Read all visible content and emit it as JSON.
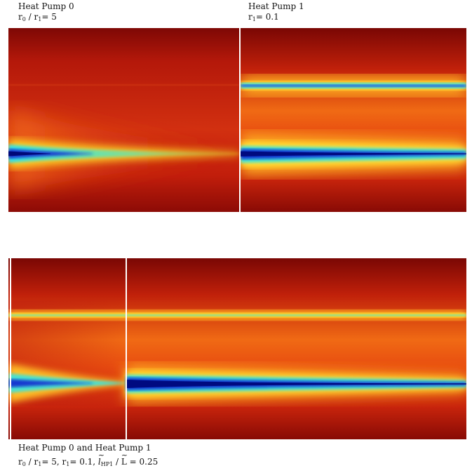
{
  "panels": [
    {
      "id": "hp0",
      "title": "Heat Pump 0",
      "param": {
        "r0": "r",
        "sub0": "0",
        "sep": " / r",
        "sub1": "1",
        "eq": "= 5"
      }
    },
    {
      "id": "hp1",
      "title": "Heat Pump 1",
      "param": {
        "r": "r",
        "sub": "1",
        "eq": "= 0.1"
      }
    },
    {
      "id": "hp01",
      "title": "Heat Pump 0 and Heat Pump 1",
      "param": {
        "a": "r",
        "a_sub": "0",
        "b": " / r",
        "b_sub": "1",
        "c": "= 5,  r",
        "c_sub": "1",
        "d": "= 0.1,  ",
        "e": "l",
        "e_sub": "HP1",
        "f": " / ",
        "g": "L",
        "h": " = 0.25"
      }
    }
  ],
  "colors": {
    "background": "#8b0a06",
    "field": "#d52a10",
    "warm": "#f05a12",
    "yellow": "#ffe030",
    "cyan": "#40e0e0",
    "blue": "#1028c8",
    "deep": "#000a8a"
  }
}
